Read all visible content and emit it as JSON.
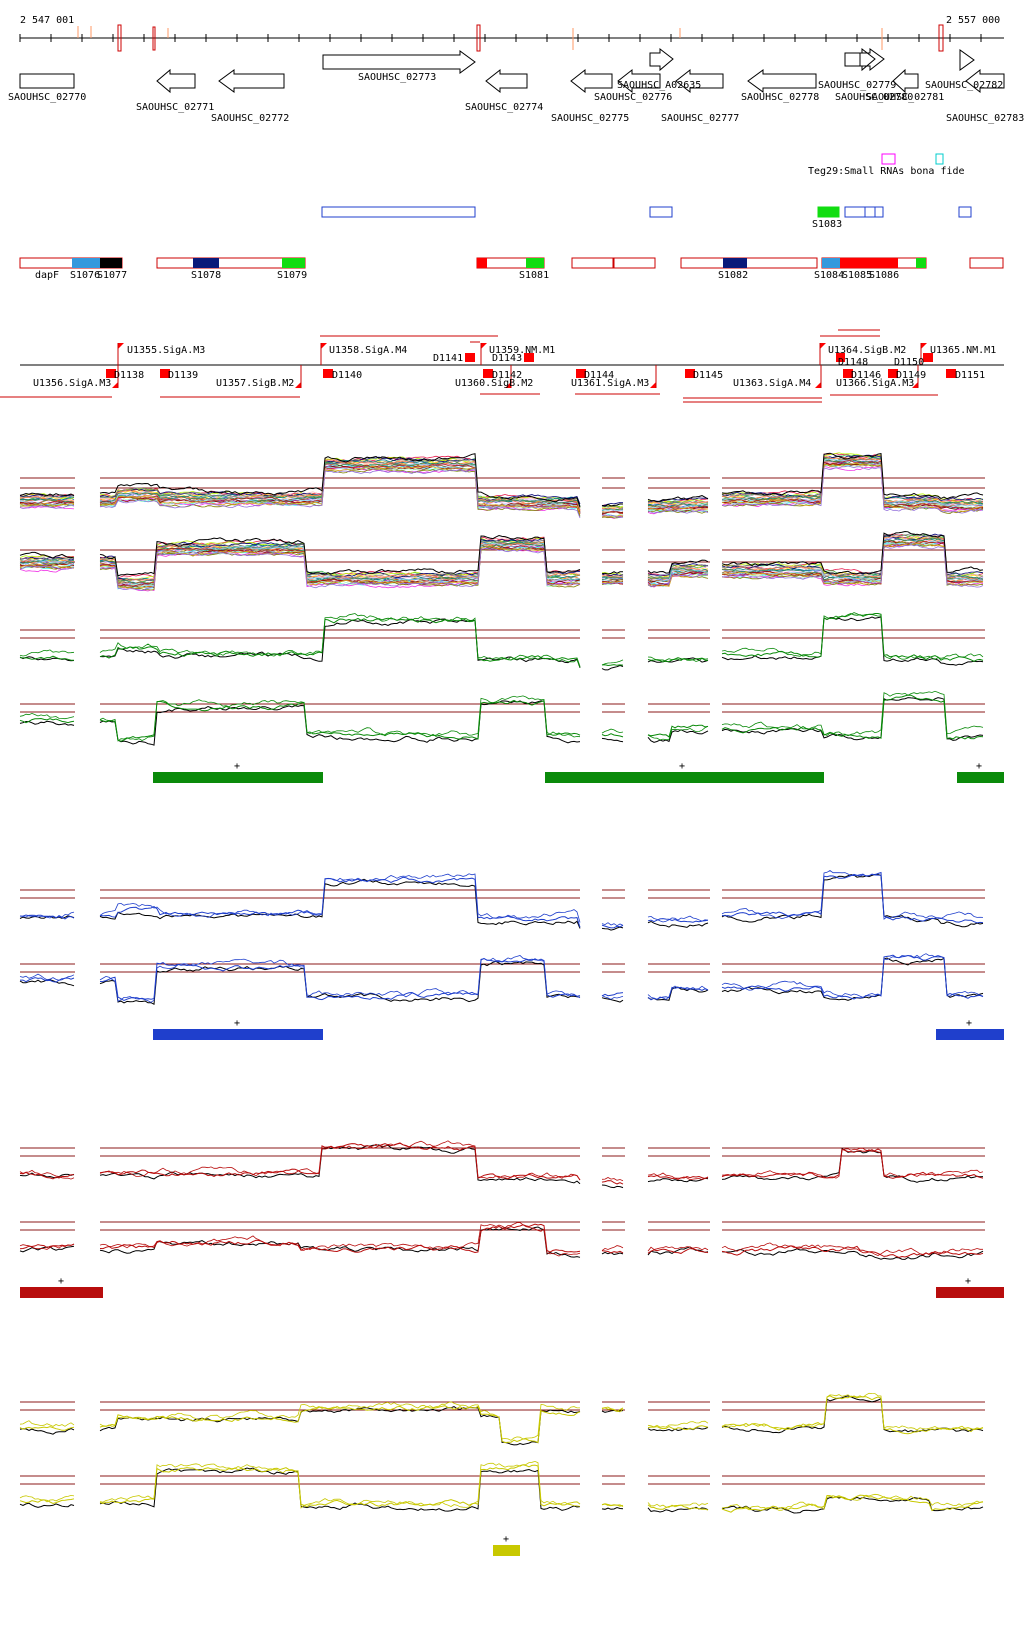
{
  "axis": {
    "start_label": "2 547 001",
    "end_label": "2 557 000"
  },
  "genes": [
    {
      "id": "SAOUHSC_02770",
      "strand": "+"
    },
    {
      "id": "SAOUHSC_02771",
      "strand": "-"
    },
    {
      "id": "SAOUHSC_02772",
      "strand": "-"
    },
    {
      "id": "SAOUHSC_02773",
      "strand": "+"
    },
    {
      "id": "SAOUHSC_02774",
      "strand": "-"
    },
    {
      "id": "SAOUHSC_02775",
      "strand": "-"
    },
    {
      "id": "SAOUHSC_02776",
      "strand": "-"
    },
    {
      "id": "SAOUHSC_A02635",
      "strand": "+"
    },
    {
      "id": "SAOUHSC_02777",
      "strand": "-"
    },
    {
      "id": "SAOUHSC_02778",
      "strand": "-"
    },
    {
      "id": "SAOUHSC_02779",
      "strand": "+"
    },
    {
      "id": "SAOUHSC_02780",
      "strand": "+"
    },
    {
      "id": "SAOUHSC_02781",
      "strand": "-"
    },
    {
      "id": "SAOUHSC_02782",
      "strand": "+"
    },
    {
      "id": "SAOUHSC_02783",
      "strand": "+"
    }
  ],
  "legend": {
    "teg": "Teg29:Small RNAs bona fide",
    "teg_color": "#ff00ff",
    "bona_color": "#00cccc"
  },
  "rna_labels": [
    "S1083"
  ],
  "segment_labels": [
    "dapF",
    "S1076",
    "S1077",
    "S1078",
    "S1079",
    "S1081",
    "S1082",
    "S1084",
    "S1085",
    "S1086"
  ],
  "tss_up": [
    "U1355.SigA.M3",
    "U1358.SigA.M4",
    "U1359.NM.M1",
    "U1364.SigB.M2",
    "U1365.NM.M1"
  ],
  "tss_down": [
    "U1356.SigA.M3",
    "U1357.SigB.M2",
    "U1360.SigB.M2",
    "U1361.SigA.M3",
    "U1363.SigA.M4",
    "U1366.SigA.M3"
  ],
  "d_labels": [
    "D1138",
    "D1139",
    "D1140",
    "D1141",
    "D1142",
    "D1143",
    "D1144",
    "D1145",
    "D1146",
    "D1148",
    "D1149",
    "D1150",
    "D1151"
  ],
  "panels": [
    {
      "color": "#0a8a0a",
      "plus": "+"
    },
    {
      "color": "#1f3fcc",
      "plus": "+"
    },
    {
      "color": "#b80d0d",
      "plus": "+"
    },
    {
      "color": "#c8c800",
      "plus": "+"
    }
  ]
}
